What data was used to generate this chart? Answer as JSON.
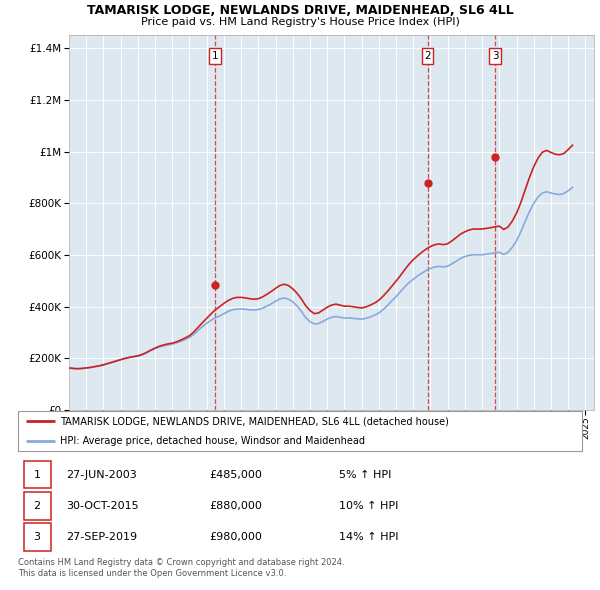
{
  "title": "TAMARISK LODGE, NEWLANDS DRIVE, MAIDENHEAD, SL6 4LL",
  "subtitle": "Price paid vs. HM Land Registry's House Price Index (HPI)",
  "legend_line1": "TAMARISK LODGE, NEWLANDS DRIVE, MAIDENHEAD, SL6 4LL (detached house)",
  "legend_line2": "HPI: Average price, detached house, Windsor and Maidenhead",
  "footer1": "Contains HM Land Registry data © Crown copyright and database right 2024.",
  "footer2": "This data is licensed under the Open Government Licence v3.0.",
  "sale_labels": [
    "1",
    "2",
    "3"
  ],
  "sale_dates_display": [
    "27-JUN-2003",
    "30-OCT-2015",
    "27-SEP-2019"
  ],
  "sale_prices_display": [
    "£485,000",
    "£880,000",
    "£980,000"
  ],
  "sale_hpi_display": [
    "5% ↑ HPI",
    "10% ↑ HPI",
    "14% ↑ HPI"
  ],
  "sale_years": [
    2003.49,
    2015.83,
    2019.75
  ],
  "sale_prices": [
    485000,
    880000,
    980000
  ],
  "red_color": "#cc2222",
  "blue_color": "#88aadd",
  "dashed_color": "#cc2222",
  "background_color": "#ffffff",
  "chart_bg_color": "#dde8f0",
  "grid_color": "#ffffff",
  "ylim": [
    0,
    1450000
  ],
  "xlim_start": 1995,
  "xlim_end": 2025.5,
  "hpi_years": [
    1995.0,
    1995.25,
    1995.5,
    1995.75,
    1996.0,
    1996.25,
    1996.5,
    1996.75,
    1997.0,
    1997.25,
    1997.5,
    1997.75,
    1998.0,
    1998.25,
    1998.5,
    1998.75,
    1999.0,
    1999.25,
    1999.5,
    1999.75,
    2000.0,
    2000.25,
    2000.5,
    2000.75,
    2001.0,
    2001.25,
    2001.5,
    2001.75,
    2002.0,
    2002.25,
    2002.5,
    2002.75,
    2003.0,
    2003.25,
    2003.5,
    2003.75,
    2004.0,
    2004.25,
    2004.5,
    2004.75,
    2005.0,
    2005.25,
    2005.5,
    2005.75,
    2006.0,
    2006.25,
    2006.5,
    2006.75,
    2007.0,
    2007.25,
    2007.5,
    2007.75,
    2008.0,
    2008.25,
    2008.5,
    2008.75,
    2009.0,
    2009.25,
    2009.5,
    2009.75,
    2010.0,
    2010.25,
    2010.5,
    2010.75,
    2011.0,
    2011.25,
    2011.5,
    2011.75,
    2012.0,
    2012.25,
    2012.5,
    2012.75,
    2013.0,
    2013.25,
    2013.5,
    2013.75,
    2014.0,
    2014.25,
    2014.5,
    2014.75,
    2015.0,
    2015.25,
    2015.5,
    2015.75,
    2016.0,
    2016.25,
    2016.5,
    2016.75,
    2017.0,
    2017.25,
    2017.5,
    2017.75,
    2018.0,
    2018.25,
    2018.5,
    2018.75,
    2019.0,
    2019.25,
    2019.5,
    2019.75,
    2020.0,
    2020.25,
    2020.5,
    2020.75,
    2021.0,
    2021.25,
    2021.5,
    2021.75,
    2022.0,
    2022.25,
    2022.5,
    2022.75,
    2023.0,
    2023.25,
    2023.5,
    2023.75,
    2024.0,
    2024.25
  ],
  "hpi_values": [
    163000,
    161000,
    160000,
    161000,
    163000,
    165000,
    168000,
    171000,
    175000,
    180000,
    185000,
    190000,
    195000,
    199000,
    203000,
    206000,
    209000,
    214000,
    221000,
    230000,
    238000,
    244000,
    249000,
    252000,
    255000,
    260000,
    266000,
    273000,
    281000,
    293000,
    308000,
    323000,
    336000,
    347000,
    357000,
    364000,
    373000,
    382000,
    388000,
    391000,
    391000,
    390000,
    388000,
    387000,
    389000,
    394000,
    402000,
    411000,
    421000,
    430000,
    434000,
    429000,
    419000,
    403000,
    382000,
    358000,
    342000,
    333000,
    335000,
    343000,
    352000,
    359000,
    362000,
    359000,
    356000,
    357000,
    355000,
    353000,
    352000,
    355000,
    360000,
    367000,
    376000,
    389000,
    405000,
    422000,
    439000,
    458000,
    476000,
    493000,
    506000,
    519000,
    530000,
    540000,
    548000,
    554000,
    556000,
    554000,
    557000,
    566000,
    576000,
    587000,
    594000,
    599000,
    601000,
    601000,
    601000,
    603000,
    606000,
    608000,
    611000,
    602000,
    610000,
    630000,
    655000,
    690000,
    730000,
    768000,
    800000,
    825000,
    840000,
    845000,
    840000,
    836000,
    834000,
    838000,
    849000,
    862000
  ],
  "red_values": [
    163000,
    161000,
    160000,
    161000,
    163000,
    165000,
    168000,
    171000,
    175000,
    180000,
    185000,
    190000,
    195000,
    200000,
    204000,
    207000,
    210000,
    215000,
    223000,
    232000,
    240000,
    247000,
    252000,
    256000,
    259000,
    264000,
    271000,
    279000,
    288000,
    302000,
    320000,
    338000,
    355000,
    372000,
    388000,
    400000,
    413000,
    424000,
    432000,
    436000,
    436000,
    434000,
    431000,
    429000,
    431000,
    438000,
    448000,
    459000,
    471000,
    482000,
    487000,
    482000,
    469000,
    452000,
    430000,
    404000,
    385000,
    373000,
    376000,
    387000,
    398000,
    406000,
    410000,
    406000,
    402000,
    402000,
    400000,
    397000,
    395000,
    399000,
    406000,
    414000,
    425000,
    441000,
    459000,
    479000,
    499000,
    520000,
    543000,
    564000,
    582000,
    597000,
    611000,
    623000,
    633000,
    640000,
    643000,
    640000,
    644000,
    655000,
    668000,
    681000,
    690000,
    697000,
    701000,
    700000,
    701000,
    703000,
    706000,
    709000,
    712000,
    699000,
    708000,
    731000,
    762000,
    803000,
    852000,
    900000,
    942000,
    975000,
    998000,
    1005000,
    997000,
    990000,
    988000,
    993000,
    1008000,
    1025000
  ]
}
